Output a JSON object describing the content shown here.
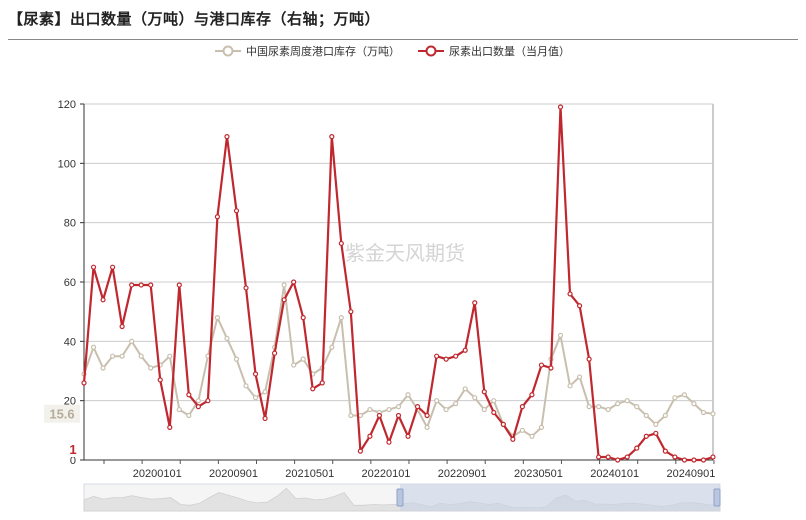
{
  "title": "【尿素】出口数量（万吨）与港口库存（右轴；万吨）",
  "chart_data": {
    "type": "line",
    "title": "【尿素】出口数量（万吨）与港口库存（右轴；万吨）",
    "ylim": [
      0,
      120
    ],
    "yticks": [
      0,
      20,
      40,
      60,
      80,
      100,
      120
    ],
    "xticks": [
      "20200101",
      "20200901",
      "20210501",
      "20220101",
      "20220901",
      "20230501",
      "20240101",
      "20240901"
    ],
    "grid": true,
    "legend_position": "top-center",
    "watermark": "紫金天风期货",
    "series": [
      {
        "name": "中国尿素周度港口库存（万吨）",
        "color": "#c8bfae",
        "end_label": "15.6",
        "values": [
          29,
          38,
          31,
          35,
          35,
          40,
          35,
          31,
          32,
          35,
          17,
          15,
          20,
          35,
          48,
          41,
          34,
          25,
          21,
          23,
          38,
          59,
          32,
          34,
          29,
          31,
          38,
          48,
          15,
          15,
          17,
          16,
          17,
          18,
          22,
          17,
          11,
          20,
          17,
          19,
          24,
          21,
          17,
          20,
          12,
          8,
          10,
          8,
          11,
          34,
          42,
          25,
          28,
          18,
          18,
          17,
          19,
          20,
          18,
          15,
          12,
          15,
          21,
          22,
          19,
          16,
          15.6
        ]
      },
      {
        "name": "尿素出口数量（当月值）",
        "color": "#c0282f",
        "end_label": "1",
        "values": [
          26,
          65,
          54,
          65,
          45,
          59,
          59,
          59,
          27,
          11,
          59,
          22,
          18,
          20,
          82,
          109,
          84,
          58,
          29,
          14,
          36,
          54,
          60,
          48,
          24,
          26,
          109,
          73,
          50,
          3,
          8,
          15,
          6,
          15,
          8,
          18,
          15,
          35,
          34,
          35,
          37,
          53,
          23,
          16,
          12,
          7,
          18,
          22,
          32,
          31,
          119,
          56,
          52,
          34,
          1,
          1,
          0,
          1,
          4,
          8,
          9,
          3,
          1,
          0,
          0,
          0,
          1
        ]
      }
    ]
  }
}
